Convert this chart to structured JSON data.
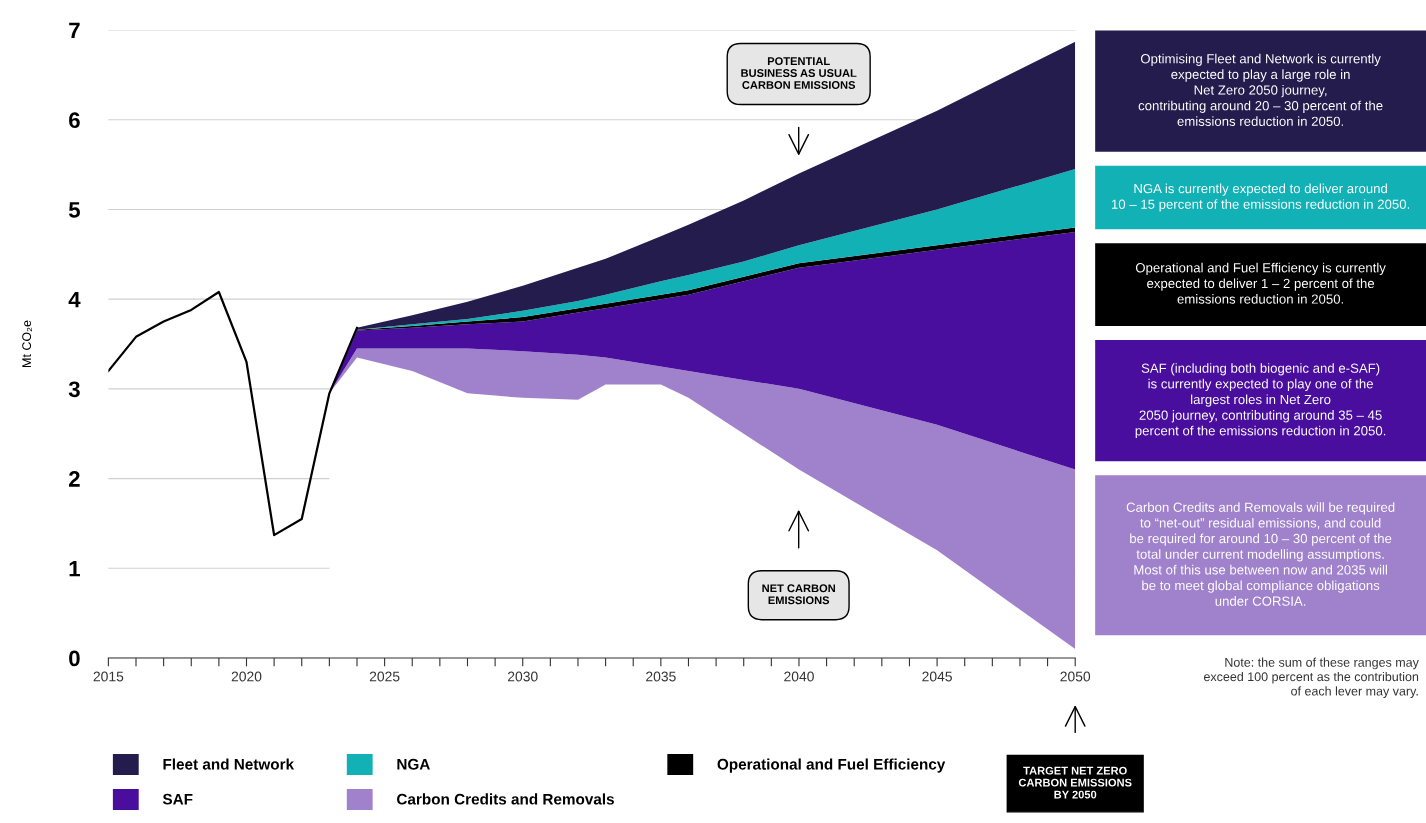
{
  "chart_data": {
    "type": "area",
    "stacked": true,
    "ylabel": "Mt CO₂e",
    "x": [
      2023,
      2024,
      2026,
      2028,
      2030,
      2032,
      2033,
      2035,
      2036,
      2038,
      2040,
      2045,
      2050
    ],
    "series": [
      {
        "color": "#ffffff",
        "values": [
          2.95,
          3.35,
          3.2,
          2.95,
          2.9,
          2.88,
          3.05,
          3.05,
          2.9,
          2.5,
          2.1,
          1.2,
          0.1
        ]
      },
      {
        "name": "Carbon Credits and Removals",
        "color": "#a082cc",
        "values": [
          0,
          0.1,
          0.25,
          0.5,
          0.52,
          0.5,
          0.3,
          0.2,
          0.3,
          0.6,
          0.9,
          1.4,
          2.0
        ]
      },
      {
        "name": "SAF",
        "color": "#4a0e9e",
        "values": [
          0,
          0.2,
          0.23,
          0.27,
          0.33,
          0.47,
          0.55,
          0.75,
          0.85,
          1.1,
          1.35,
          1.95,
          2.65
        ]
      },
      {
        "name": "Operational and Fuel Efficiency",
        "color": "#000000",
        "values": [
          0,
          0.01,
          0.02,
          0.03,
          0.05,
          0.05,
          0.05,
          0.05,
          0.05,
          0.05,
          0.05,
          0.05,
          0.05
        ]
      },
      {
        "name": "NGA",
        "color": "#12b1b5",
        "values": [
          0,
          0,
          0.02,
          0.03,
          0.07,
          0.08,
          0.1,
          0.15,
          0.17,
          0.17,
          0.2,
          0.4,
          0.65
        ]
      },
      {
        "name": "Fleet and Network",
        "color": "#251c4e",
        "values": [
          0,
          0.02,
          0.1,
          0.19,
          0.28,
          0.37,
          0.4,
          0.5,
          0.56,
          0.68,
          0.8,
          1.1,
          1.42
        ]
      },
      {
        "type": "line",
        "color": "#000000",
        "x": [
          2015,
          2016,
          2017,
          2018,
          2019,
          2020,
          2021,
          2022,
          2023,
          2024
        ],
        "values": [
          3.2,
          3.58,
          3.75,
          3.88,
          4.08,
          3.3,
          1.37,
          1.55,
          2.95,
          3.68
        ]
      }
    ],
    "xlim": [
      2015,
      2050
    ],
    "xticks": [
      2015,
      {
        "value": 2016,
        "label": null
      },
      {
        "value": 2017,
        "label": null
      },
      {
        "value": 2018,
        "label": null
      },
      {
        "value": 2019,
        "label": null
      },
      2020,
      {
        "value": 2021,
        "label": null
      },
      {
        "value": 2022,
        "label": null
      },
      {
        "value": 2023,
        "label": null
      },
      {
        "value": 2024,
        "label": null
      },
      2025,
      {
        "value": 2026,
        "label": null
      },
      {
        "value": 2027,
        "label": null
      },
      {
        "value": 2028,
        "label": null
      },
      {
        "value": 2029,
        "label": null
      },
      2030,
      {
        "value": 2031,
        "label": null
      },
      {
        "value": 2032,
        "label": null
      },
      {
        "value": 2033,
        "label": null
      },
      {
        "value": 2034,
        "label": null
      },
      2035,
      {
        "value": 2036,
        "label": null
      },
      {
        "value": 2037,
        "label": null
      },
      {
        "value": 2038,
        "label": null
      },
      {
        "value": 2039,
        "label": null
      },
      2040,
      {
        "value": 2041,
        "label": null
      },
      {
        "value": 2042,
        "label": null
      },
      {
        "value": 2043,
        "label": null
      },
      {
        "value": 2044,
        "label": null
      },
      2045,
      {
        "value": 2046,
        "label": null
      },
      {
        "value": 2047,
        "label": null
      },
      {
        "value": 2048,
        "label": null
      },
      {
        "value": 2049,
        "label": null
      },
      2050
    ],
    "ylim": [
      0,
      7
    ],
    "yticks": [
      0,
      1,
      2,
      3,
      4,
      5,
      6,
      7
    ],
    "grid": "y",
    "legend": "bottom",
    "line_style": "solid",
    "annotations": [
      "POTENTIAL\nBUSINESS AS USUAL\nCARBON EMISSIONS",
      "NET CARBON\nEMISSIONS",
      "TARGET NET ZERO\nCARBON EMISSIONS\nBY 2050",
      "Optimising Fleet and Network is currently\nexpected to play a large role in\nNet Zero 2050 journey,\ncontributing around 20 – 30 percent of the\nemissions reduction in 2050.",
      "NGA is currently expected to deliver around\n10 – 15 percent of the emissions reduction in 2050.",
      "Operational and Fuel Efficiency is currently\nexpected to deliver 1 – 2 percent of the\nemissions reduction in 2050.",
      "SAF (including both biogenic and e-SAF)\nis currently expected to play one of the\nlargest roles in Net Zero\n2050 journey, contributing around 35 – 45\npercent of the emissions reduction in 2050.",
      "Carbon Credits and Removals will be required\nto “net-out” residual emissions, and could\nbe required for around 10 – 30 percent of the\ntotal under current modelling assumptions.\nMost of this use between now and 2035 will\nbe to meet global compliance obligations\nunder CORSIA.",
      "Note: the sum of these ranges may\nexceed 100 percent as the contribution\nof each lever may vary."
    ]
  }
}
